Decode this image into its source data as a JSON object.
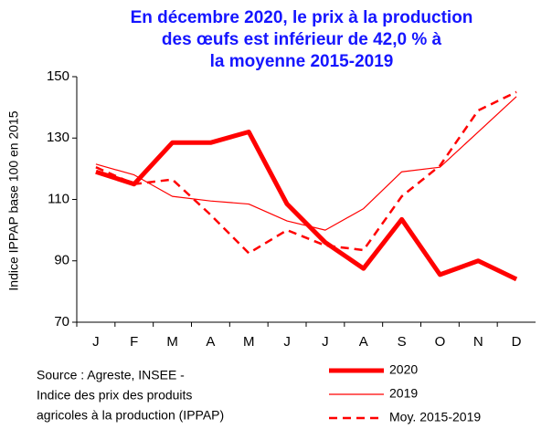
{
  "chart_data": {
    "type": "line",
    "title": [
      "En décembre 2020, le prix à la production",
      "des œufs est inférieur de 42,0 % à",
      "la moyenne 2015-2019"
    ],
    "y_label": "Indice IPPAP  base 100 en 2015",
    "source": [
      "Source : Agreste, INSEE -",
      "Indice  des prix des produits",
      "agricoles à la production (IPPAP)"
    ],
    "categories": [
      "J",
      "F",
      "M",
      "A",
      "M",
      "J",
      "J",
      "A",
      "S",
      "O",
      "N",
      "D"
    ],
    "series": [
      {
        "name": "2020",
        "color": "#ff0000",
        "style": "thick",
        "values": [
          119,
          115,
          128.5,
          128.5,
          132,
          108.5,
          96,
          87.5,
          103.5,
          85.5,
          90,
          84
        ]
      },
      {
        "name": "2019",
        "color": "#ff0000",
        "style": "thin",
        "values": [
          121.5,
          118,
          111,
          109.5,
          108.5,
          103,
          100,
          107,
          119,
          120.5,
          132,
          143.5
        ]
      },
      {
        "name": "Moy. 2015-2019",
        "color": "#ff0000",
        "style": "dashed",
        "values": [
          120.5,
          115,
          116.5,
          105,
          92.5,
          100,
          95,
          93.5,
          111,
          121,
          139,
          145
        ]
      }
    ],
    "ylim": [
      70,
      150
    ],
    "yticks": [
      70,
      90,
      110,
      130,
      150
    ],
    "grid": false
  }
}
